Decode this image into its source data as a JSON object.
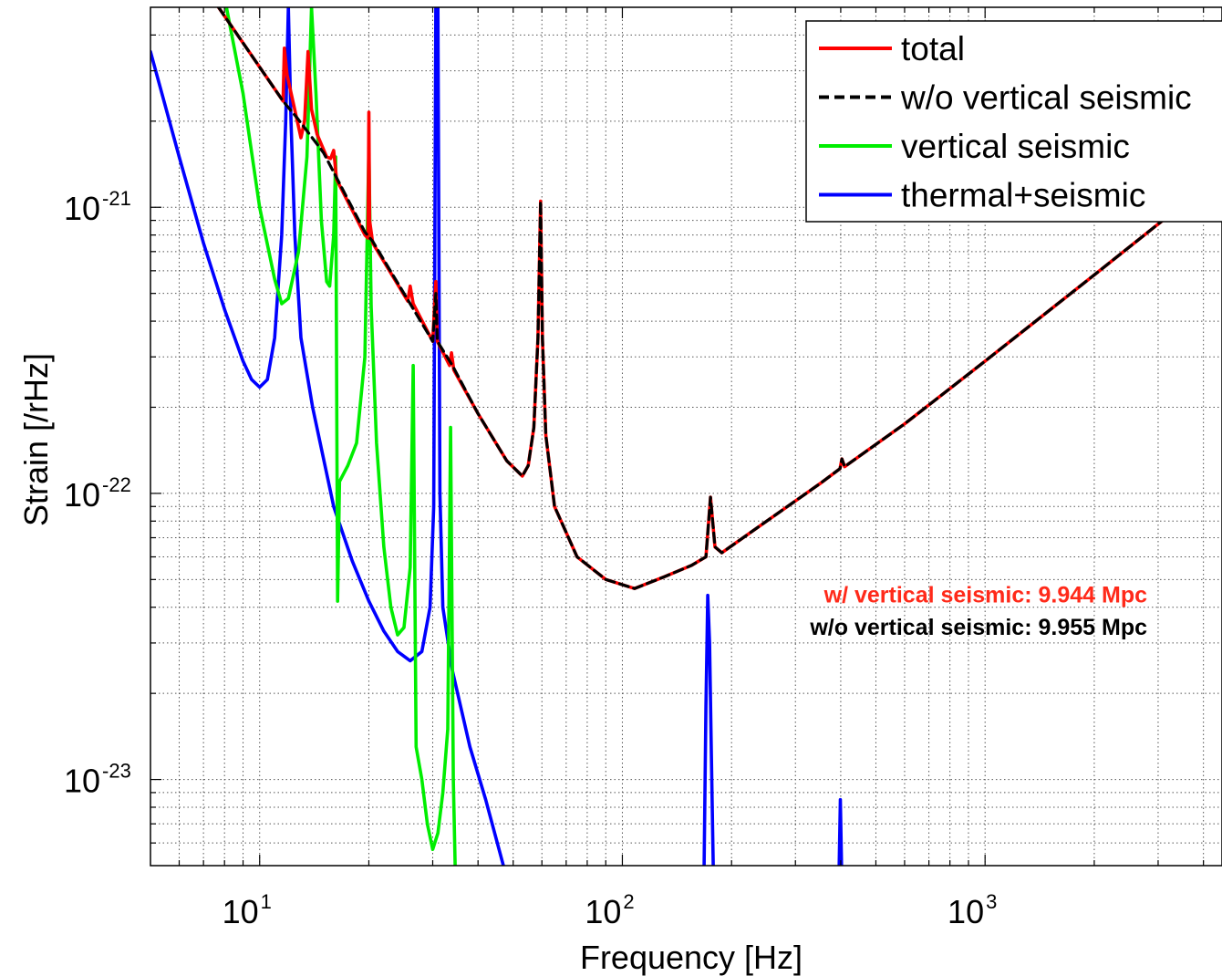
{
  "chart_data": {
    "type": "line",
    "xlabel": "Frequency [Hz]",
    "ylabel": "Strain [/rHz]",
    "xscale": "log",
    "yscale": "log",
    "xlim": [
      5,
      4500
    ],
    "ylim": [
      5e-24,
      5e-21
    ],
    "grid": true,
    "legend_position": "top-right",
    "x_ticks": [
      {
        "base": "10",
        "exp": "1",
        "value": 10
      },
      {
        "base": "10",
        "exp": "2",
        "value": 100
      },
      {
        "base": "10",
        "exp": "3",
        "value": 1000
      }
    ],
    "y_ticks": [
      {
        "base": "10",
        "exp": "-21",
        "value": 1e-21
      },
      {
        "base": "10",
        "exp": "-22",
        "value": 1e-22
      },
      {
        "base": "10",
        "exp": "-23",
        "value": 1e-23
      }
    ],
    "annotations": [
      {
        "text": "w/ vertical seismic: 9.944 Mpc",
        "color": "#ff2a1a",
        "x": 2900,
        "y": 4.4e-23
      },
      {
        "text": "w/o vertical seismic: 9.955 Mpc",
        "color": "#000000",
        "x": 2900,
        "y": 3.4e-23
      }
    ],
    "series": [
      {
        "name": "total",
        "color": "#ff0000",
        "style": "solid",
        "points": [
          [
            7.7,
            5e-21
          ],
          [
            11.6,
            2.35e-21
          ],
          [
            11.7,
            3.6e-21
          ],
          [
            11.9,
            2.9e-21
          ],
          [
            12.7,
            2e-21
          ],
          [
            13.0,
            1.75e-21
          ],
          [
            13.3,
            2e-21
          ],
          [
            13.6,
            3.5e-21
          ],
          [
            13.9,
            2.2e-21
          ],
          [
            14.4,
            1.8e-21
          ],
          [
            15.3,
            1.5e-21
          ],
          [
            15.7,
            1.48e-21
          ],
          [
            16.0,
            1.58e-21
          ],
          [
            16.3,
            1.25e-21
          ],
          [
            19.5,
            8e-22
          ],
          [
            19.9,
            7.8e-22
          ],
          [
            20.0,
            2.15e-21
          ],
          [
            20.1,
            9e-22
          ],
          [
            20.5,
            7.5e-22
          ],
          [
            25.6,
            4.7e-22
          ],
          [
            26.0,
            5.3e-22
          ],
          [
            26.5,
            4.6e-22
          ],
          [
            30,
            3.4e-22
          ],
          [
            30.6,
            5.5e-22
          ],
          [
            30.9,
            3.4e-22
          ],
          [
            33.4,
            2.8e-22
          ],
          [
            33.8,
            3.1e-22
          ],
          [
            34.3,
            2.7e-22
          ],
          [
            40,
            1.9e-22
          ],
          [
            48,
            1.3e-22
          ],
          [
            53,
            1.15e-22
          ],
          [
            55,
            1.25e-22
          ],
          [
            57,
            1.7e-22
          ],
          [
            58.5,
            3.5e-22
          ],
          [
            59.5,
            1.05e-21
          ],
          [
            60.2,
            3.5e-22
          ],
          [
            61.5,
            1.6e-22
          ],
          [
            65,
            9e-23
          ],
          [
            75,
            6e-23
          ],
          [
            90,
            5e-23
          ],
          [
            108,
            4.65e-23
          ],
          [
            130,
            5.1e-23
          ],
          [
            155,
            5.6e-23
          ],
          [
            170,
            6e-23
          ],
          [
            175,
            9.7e-23
          ],
          [
            180,
            6.5e-23
          ],
          [
            188,
            6.2e-23
          ],
          [
            250,
            8e-23
          ],
          [
            350,
            1.08e-22
          ],
          [
            398,
            1.22e-22
          ],
          [
            403,
            1.32e-22
          ],
          [
            410,
            1.24e-22
          ],
          [
            600,
            1.75e-22
          ],
          [
            1000,
            2.9e-22
          ],
          [
            2000,
            5.8e-22
          ],
          [
            3500,
            1.02e-21
          ],
          [
            4500,
            1.3e-21
          ]
        ]
      },
      {
        "name": "w/o vertical seismic",
        "color": "#000000",
        "style": "dashed",
        "points": [
          [
            7.7,
            5e-21
          ],
          [
            11.6,
            2.35e-21
          ],
          [
            12.7,
            2.05e-21
          ],
          [
            15,
            1.55e-21
          ],
          [
            19.5,
            8.2e-22
          ],
          [
            20.5,
            7.6e-22
          ],
          [
            25,
            5e-22
          ],
          [
            30,
            3.4e-22
          ],
          [
            30.6,
            5e-22
          ],
          [
            30.9,
            3.4e-22
          ],
          [
            34,
            2.8e-22
          ],
          [
            40,
            1.9e-22
          ],
          [
            48,
            1.3e-22
          ],
          [
            53,
            1.15e-22
          ],
          [
            55,
            1.25e-22
          ],
          [
            57,
            1.7e-22
          ],
          [
            58.5,
            3.5e-22
          ],
          [
            59.5,
            1.05e-21
          ],
          [
            60.2,
            3.5e-22
          ],
          [
            61.5,
            1.6e-22
          ],
          [
            65,
            9e-23
          ],
          [
            75,
            6e-23
          ],
          [
            90,
            5e-23
          ],
          [
            108,
            4.65e-23
          ],
          [
            130,
            5.1e-23
          ],
          [
            155,
            5.6e-23
          ],
          [
            170,
            6e-23
          ],
          [
            175,
            9.7e-23
          ],
          [
            180,
            6.5e-23
          ],
          [
            188,
            6.2e-23
          ],
          [
            250,
            8e-23
          ],
          [
            350,
            1.08e-22
          ],
          [
            398,
            1.22e-22
          ],
          [
            403,
            1.32e-22
          ],
          [
            410,
            1.24e-22
          ],
          [
            600,
            1.75e-22
          ],
          [
            1000,
            2.9e-22
          ],
          [
            2000,
            5.8e-22
          ],
          [
            3500,
            1.02e-21
          ],
          [
            4500,
            1.3e-21
          ]
        ]
      },
      {
        "name": "vertical seismic",
        "color": "#00ee00",
        "style": "solid",
        "points": [
          [
            8.1,
            5e-21
          ],
          [
            9,
            2.5e-21
          ],
          [
            10,
            1e-21
          ],
          [
            11,
            5.6e-22
          ],
          [
            11.5,
            4.6e-22
          ],
          [
            12,
            4.8e-22
          ],
          [
            12.8,
            7e-22
          ],
          [
            13.5,
            1.5e-21
          ],
          [
            13.9,
            5e-21
          ],
          [
            14.3,
            2.5e-21
          ],
          [
            14.8,
            9e-22
          ],
          [
            15.3,
            5.5e-22
          ],
          [
            15.6,
            5.3e-22
          ],
          [
            16.0,
            8e-22
          ],
          [
            16.2,
            1.5e-21
          ],
          [
            16.4,
            4.2e-23
          ],
          [
            16.6,
            1.1e-22
          ],
          [
            17.5,
            1.25e-22
          ],
          [
            18.5,
            1.5e-22
          ],
          [
            19.5,
            3e-22
          ],
          [
            20.0,
            1.6e-21
          ],
          [
            20.3,
            4.5e-22
          ],
          [
            21,
            1.5e-22
          ],
          [
            22,
            6.5e-23
          ],
          [
            23,
            4e-23
          ],
          [
            24,
            3.2e-23
          ],
          [
            25,
            3.4e-23
          ],
          [
            26,
            5.5e-23
          ],
          [
            26.5,
            2.8e-22
          ],
          [
            27,
            1.3e-23
          ],
          [
            28,
            1e-23
          ],
          [
            29,
            7e-24
          ],
          [
            30,
            5.7e-24
          ],
          [
            31,
            6.5e-24
          ],
          [
            32,
            9e-24
          ],
          [
            33,
            1.5e-23
          ],
          [
            33.6,
            1.7e-22
          ],
          [
            34.2,
            1e-23
          ],
          [
            34.6,
            5e-24
          ]
        ]
      },
      {
        "name": "thermal+seismic",
        "color": "#0000ff",
        "style": "solid",
        "points": [
          [
            5,
            3.5e-21
          ],
          [
            6,
            1.5e-21
          ],
          [
            7,
            7.5e-22
          ],
          [
            8,
            4.4e-22
          ],
          [
            9,
            2.9e-22
          ],
          [
            9.5,
            2.5e-22
          ],
          [
            10,
            2.35e-22
          ],
          [
            10.5,
            2.5e-22
          ],
          [
            11,
            3.5e-22
          ],
          [
            11.5,
            8e-22
          ],
          [
            11.8,
            2e-21
          ],
          [
            12.0,
            5e-21
          ],
          [
            12.2,
            2e-21
          ],
          [
            12.5,
            8e-22
          ],
          [
            13,
            3.5e-22
          ],
          [
            14,
            2e-22
          ],
          [
            16,
            9e-23
          ],
          [
            18,
            5.8e-23
          ],
          [
            20,
            4.2e-23
          ],
          [
            22,
            3.3e-23
          ],
          [
            24,
            2.8e-23
          ],
          [
            26,
            2.6e-23
          ],
          [
            28,
            2.8e-23
          ],
          [
            29.5,
            4e-23
          ],
          [
            30.2,
            9e-23
          ],
          [
            30.6,
            5e-21
          ],
          [
            31.0,
            5e-21
          ],
          [
            31.4,
            1e-22
          ],
          [
            32,
            4e-23
          ],
          [
            34,
            2.4e-23
          ],
          [
            38,
            1.3e-23
          ],
          [
            42,
            8.5e-24
          ],
          [
            47,
            5e-24
          ]
        ]
      },
      {
        "name": "thermal+seismic",
        "color": "#0000ff",
        "style": "solid",
        "points": [
          [
            168,
            5e-24
          ],
          [
            170,
            1.8e-23
          ],
          [
            172,
            4.4e-23
          ],
          [
            174,
            3e-23
          ],
          [
            176,
            1.2e-23
          ],
          [
            178,
            5e-24
          ]
        ]
      },
      {
        "name": "thermal+seismic",
        "color": "#0000ff",
        "style": "solid",
        "points": [
          [
            396,
            5e-24
          ],
          [
            399,
            8.5e-24
          ],
          [
            402,
            5e-24
          ]
        ]
      }
    ]
  }
}
